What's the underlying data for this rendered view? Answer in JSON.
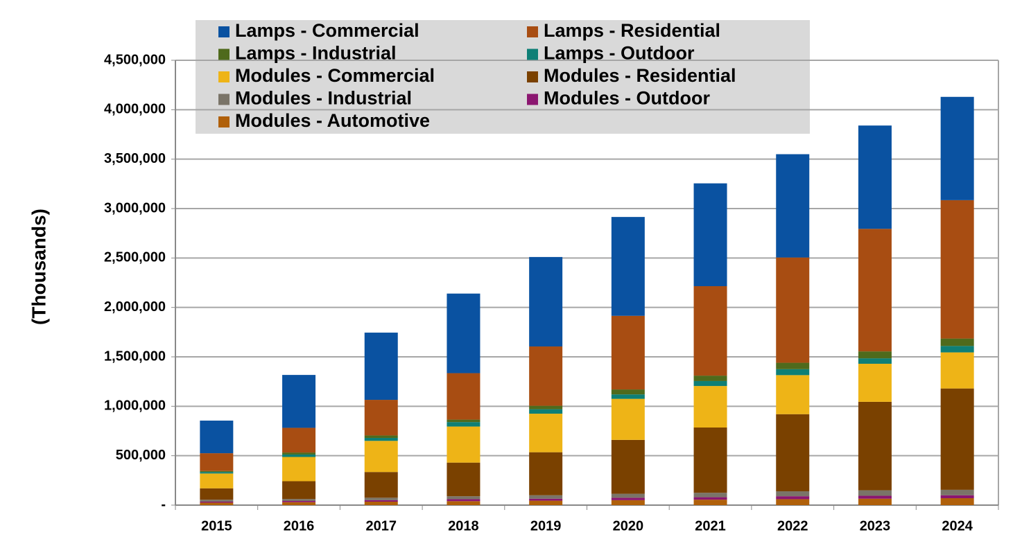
{
  "chart_data": {
    "type": "stacked_bar",
    "y_label": "(Thousands)",
    "categories": [
      "2015",
      "2016",
      "2017",
      "2018",
      "2019",
      "2020",
      "2021",
      "2022",
      "2023",
      "2024"
    ],
    "series": [
      {
        "name": "Lamps - Commercial",
        "color": "#0a52a1",
        "values": [
          330000,
          535000,
          680000,
          805000,
          905000,
          1000000,
          1040000,
          1045000,
          1045000,
          1045000
        ]
      },
      {
        "name": "Lamps - Residential",
        "color": "#a84d12",
        "values": [
          180000,
          250000,
          360000,
          470000,
          600000,
          745000,
          905000,
          1065000,
          1240000,
          1400000
        ]
      },
      {
        "name": "Lamps - Industrial",
        "color": "#4f6a1c",
        "values": [
          10000,
          20000,
          25000,
          25000,
          35000,
          50000,
          55000,
          65000,
          70000,
          75000
        ]
      },
      {
        "name": "Lamps - Outdoor",
        "color": "#0e7f76",
        "values": [
          15000,
          25000,
          30000,
          45000,
          45000,
          45000,
          50000,
          60000,
          55000,
          65000
        ]
      },
      {
        "name": "Modules - Commercial",
        "color": "#eeb417",
        "values": [
          150000,
          245000,
          315000,
          365000,
          390000,
          415000,
          420000,
          395000,
          385000,
          365000
        ]
      },
      {
        "name": "Modules - Residential",
        "color": "#7a4100",
        "values": [
          115000,
          180000,
          260000,
          340000,
          435000,
          545000,
          660000,
          780000,
          895000,
          1025000
        ]
      },
      {
        "name": "Modules - Industrial",
        "color": "#7a7468",
        "values": [
          20000,
          20000,
          25000,
          30000,
          35000,
          40000,
          45000,
          50000,
          55000,
          55000
        ]
      },
      {
        "name": "Modules - Outdoor",
        "color": "#8b1670",
        "values": [
          10000,
          12000,
          15000,
          20000,
          20000,
          25000,
          25000,
          30000,
          30000,
          30000
        ]
      },
      {
        "name": "Modules - Automotive",
        "color": "#b0600a",
        "values": [
          25000,
          30000,
          35000,
          40000,
          45000,
          50000,
          55000,
          60000,
          65000,
          70000
        ]
      }
    ],
    "ylim": [
      0,
      4500000
    ],
    "yticks": [
      {
        "value": 0,
        "label": "-"
      },
      {
        "value": 500000,
        "label": "500,000"
      },
      {
        "value": 1000000,
        "label": "1,000,000"
      },
      {
        "value": 1500000,
        "label": "1,500,000"
      },
      {
        "value": 2000000,
        "label": "2,000,000"
      },
      {
        "value": 2500000,
        "label": "2,500,000"
      },
      {
        "value": 3000000,
        "label": "3,000,000"
      },
      {
        "value": 3500000,
        "label": "3,500,000"
      },
      {
        "value": 4000000,
        "label": "4,000,000"
      },
      {
        "value": 4500000,
        "label": "4,500,000"
      }
    ],
    "grid": true
  }
}
